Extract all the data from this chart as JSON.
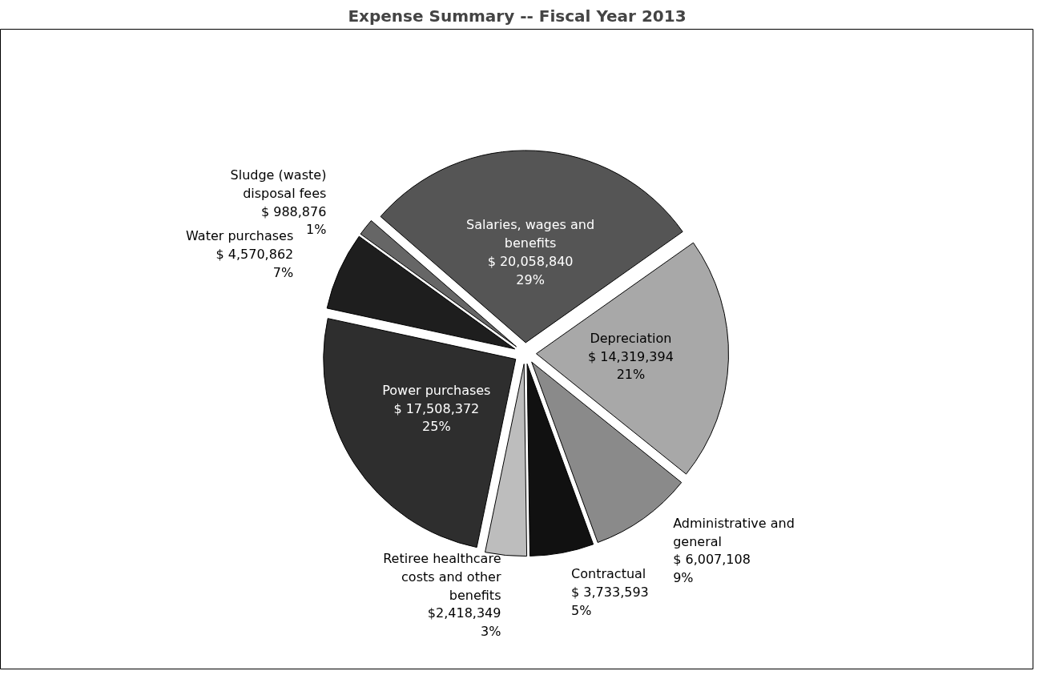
{
  "chart_data": {
    "type": "pie",
    "title": "Expense Summary -- Fiscal Year 2013",
    "categories": [
      "Salaries, wages and benefits",
      "Depreciation",
      "Administrative and general",
      "Contractual",
      "Retiree healthcare costs and other benefits",
      "Power purchases",
      "Water purchases",
      "Sludge (waste) disposal fees"
    ],
    "values": [
      20058840,
      14319394,
      6007108,
      3733593,
      2418349,
      17508372,
      4570862,
      988876
    ],
    "value_labels": [
      "$ 20,058,840\n29%",
      "$ 14,319,394\n21%",
      "$ 6,007,108\n9%",
      "$ 3,733,593\n5%",
      "$2,418,349\n3%",
      "$ 17,508,372\n25%",
      "$ 4,570,862\n7%",
      "$ 988,876\n1%"
    ],
    "colors": [
      "#555555",
      "#a8a8a8",
      "#8a8a8a",
      "#111111",
      "#bdbdbd",
      "#2e2e2e",
      "#1e1e1e",
      "#666666"
    ]
  }
}
